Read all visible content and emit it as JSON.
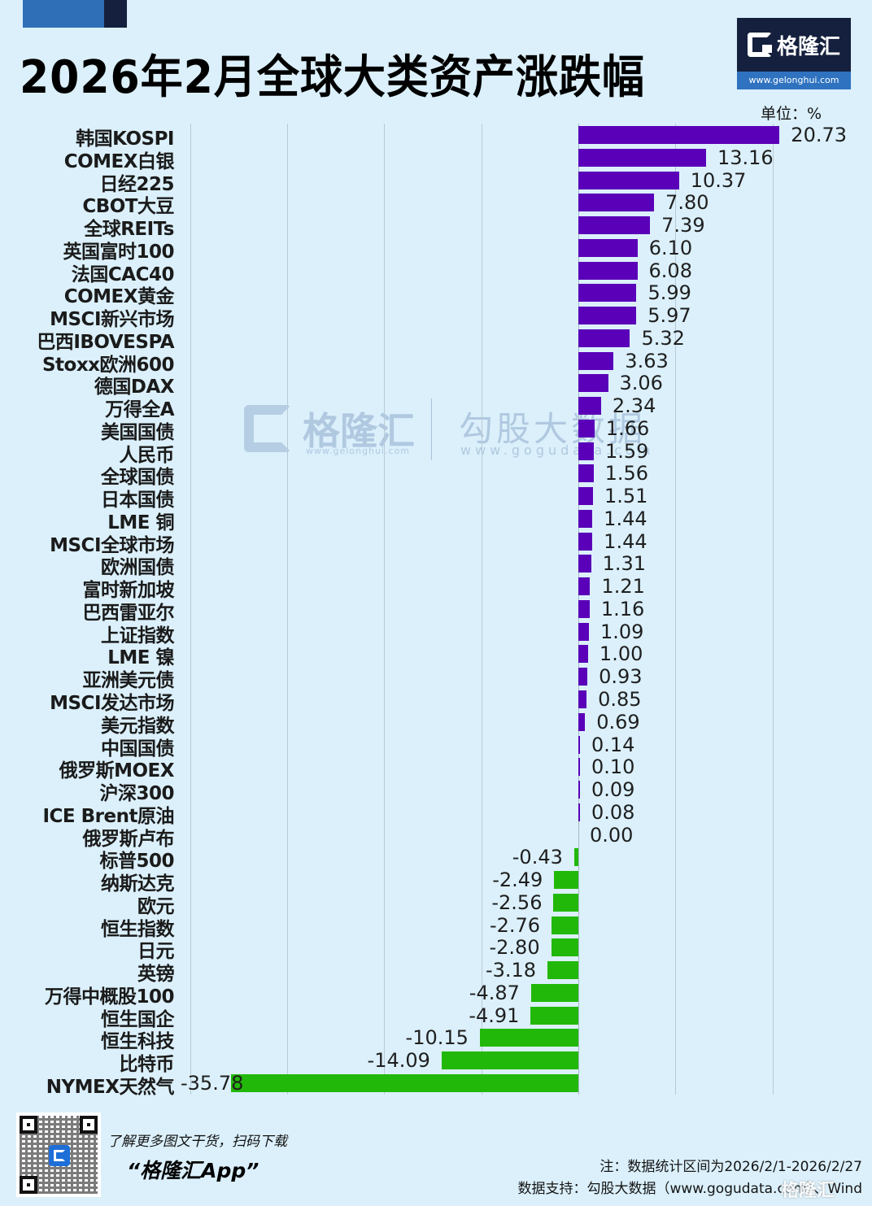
{
  "header": {
    "title": "2026年2月全球大类资产涨跌幅",
    "unit_label": "单位：%"
  },
  "logo": {
    "icon": "gelonghui-g-icon",
    "name": "格隆汇",
    "url": "www.gelonghui.com"
  },
  "watermark": {
    "brand1": "格隆汇",
    "brand1_url": "www.gelonghui.com",
    "brand2": "勾股大数据",
    "brand2_url": "www.gogudata.com"
  },
  "colors": {
    "background": "#dbf0fb",
    "positive_bar": "#5a00b8",
    "negative_bar": "#22b80a",
    "logo_dark": "#15203e",
    "logo_blue": "#2f73c0"
  },
  "chart_data": {
    "type": "bar",
    "orientation": "horizontal",
    "title": "2026年2月全球大类资产涨跌幅",
    "xlabel": "",
    "ylabel": "",
    "unit": "%",
    "xlim": [
      -40,
      20
    ],
    "grid": true,
    "gridline_step": 10,
    "categories": [
      "韩国KOSPI",
      "COMEX白银",
      "日经225",
      "CBOT大豆",
      "全球REITs",
      "英国富时100",
      "法国CAC40",
      "COMEX黄金",
      "MSCI新兴市场",
      "巴西IBOVESPA",
      "Stoxx欧洲600",
      "德国DAX",
      "万得全A",
      "美国国债",
      "人民币",
      "全球国债",
      "日本国债",
      "LME 铜",
      "MSCI全球市场",
      "欧洲国债",
      "富时新加坡",
      "巴西雷亚尔",
      "上证指数",
      "LME 镍",
      "亚洲美元债",
      "MSCI发达市场",
      "美元指数",
      "中国国债",
      "俄罗斯MOEX",
      "沪深300",
      "ICE Brent原油",
      "俄罗斯卢布",
      "标普500",
      "纳斯达克",
      "欧元",
      "恒生指数",
      "日元",
      "英镑",
      "万得中概股100",
      "恒生国企",
      "恒生科技",
      "比特币",
      "NYMEX天然气"
    ],
    "values": [
      20.73,
      13.16,
      10.37,
      7.8,
      7.39,
      6.1,
      6.08,
      5.99,
      5.97,
      5.32,
      3.63,
      3.06,
      2.34,
      1.66,
      1.59,
      1.56,
      1.51,
      1.44,
      1.44,
      1.31,
      1.21,
      1.16,
      1.09,
      1.0,
      0.93,
      0.85,
      0.69,
      0.14,
      0.1,
      0.09,
      0.08,
      0.0,
      -0.43,
      -2.49,
      -2.56,
      -2.76,
      -2.8,
      -3.18,
      -4.87,
      -4.91,
      -10.15,
      -14.09,
      -35.78
    ],
    "value_labels": [
      "20.73",
      "13.16",
      "10.37",
      "7.80",
      "7.39",
      "6.10",
      "6.08",
      "5.99",
      "5.97",
      "5.32",
      "3.63",
      "3.06",
      "2.34",
      "1.66",
      "1.59",
      "1.56",
      "1.51",
      "1.44",
      "1.44",
      "1.31",
      "1.21",
      "1.16",
      "1.09",
      "1.00",
      "0.93",
      "0.85",
      "0.69",
      "0.14",
      "0.10",
      "0.09",
      "0.08",
      "0.00",
      "-0.43",
      "-2.49",
      "-2.56",
      "-2.76",
      "-2.80",
      "-3.18",
      "-4.87",
      "-4.91",
      "-10.15",
      "-14.09",
      "-35.78"
    ],
    "legend": null
  },
  "footer": {
    "qr_icon": "qr-code-icon",
    "promo_line1": "了解更多图文干货，扫码下载",
    "promo_line2": "“格隆汇App”",
    "note": "注：数据统计区间为2026/2/1-2026/2/27",
    "source": "数据支持：勾股大数据（www.gogudata.com）、Wind"
  }
}
